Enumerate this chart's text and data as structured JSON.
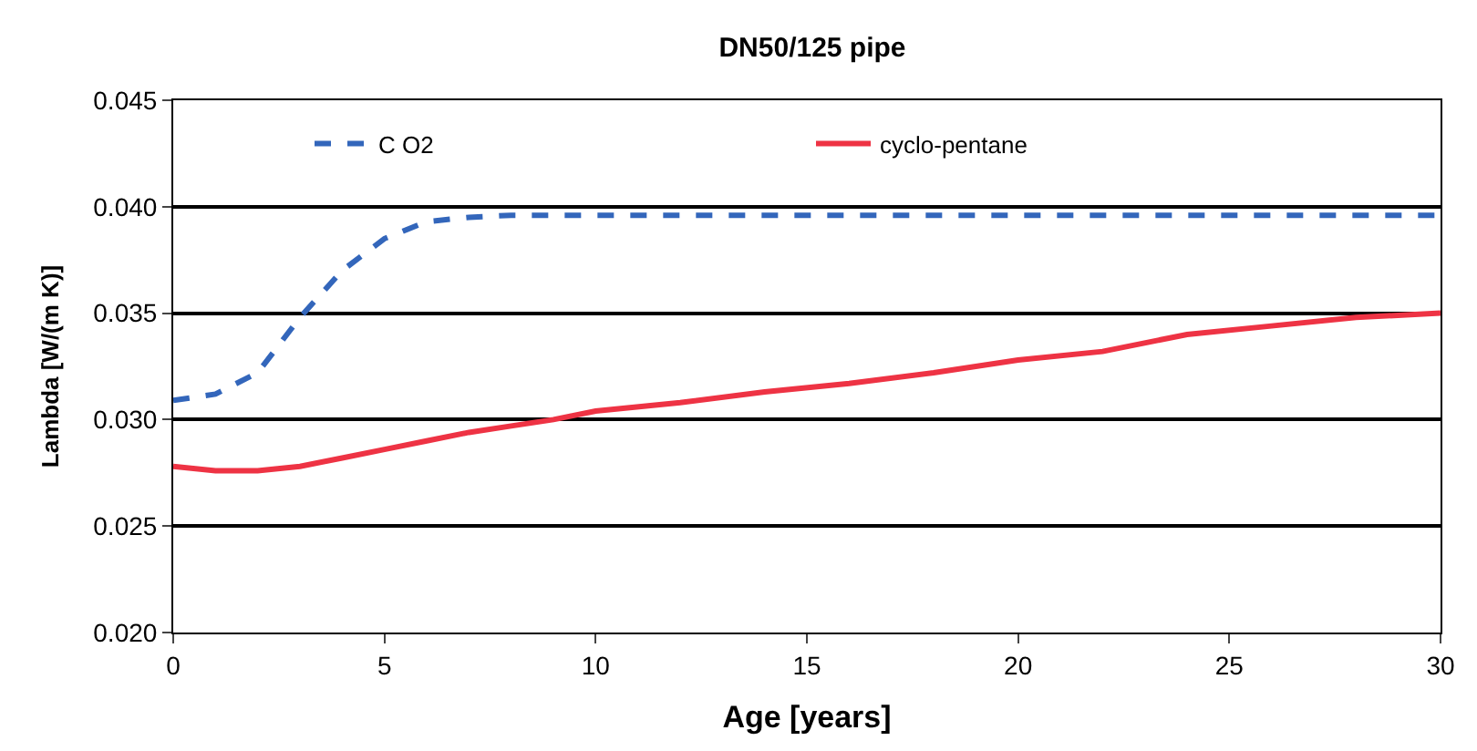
{
  "chart_data": {
    "type": "line",
    "title": "DN50/125 pipe",
    "xlabel": "Age [years]",
    "ylabel": "Lambda [W/(m K)]",
    "xlim": [
      0,
      30
    ],
    "xticks": [
      0,
      5,
      10,
      15,
      20,
      25,
      30
    ],
    "ylim": [
      0.02,
      0.045
    ],
    "yticks": [
      {
        "value": 0.02,
        "label": "0.020"
      },
      {
        "value": 0.025,
        "label": "0.025"
      },
      {
        "value": 0.03,
        "label": "0.030"
      },
      {
        "value": 0.035,
        "label": "0.035"
      },
      {
        "value": 0.04,
        "label": "0.040"
      },
      {
        "value": 0.045,
        "label": "0.045"
      }
    ],
    "grid": "y",
    "legend": "top",
    "marker": "none",
    "series": [
      {
        "name": "C O2",
        "color": "#3366bb",
        "line_style": "dashed",
        "x": [
          0,
          1,
          2,
          3,
          4,
          5,
          6,
          7,
          8,
          10,
          15,
          20,
          25,
          30
        ],
        "values": [
          0.0309,
          0.0312,
          0.0322,
          0.0348,
          0.037,
          0.0385,
          0.0393,
          0.0395,
          0.0396,
          0.0396,
          0.0396,
          0.0396,
          0.0396,
          0.0396
        ]
      },
      {
        "name": "cyclo-pentane",
        "color": "#ee3344",
        "line_style": "solid",
        "x": [
          0,
          1,
          2,
          3,
          4,
          5,
          6,
          7,
          8,
          9,
          10,
          12,
          14,
          16,
          18,
          20,
          22,
          24,
          26,
          28,
          30
        ],
        "values": [
          0.0278,
          0.0276,
          0.0276,
          0.0278,
          0.0282,
          0.0286,
          0.029,
          0.0294,
          0.0297,
          0.03,
          0.0304,
          0.0308,
          0.0313,
          0.0317,
          0.0322,
          0.0328,
          0.0332,
          0.034,
          0.0344,
          0.0348,
          0.035
        ]
      }
    ]
  }
}
